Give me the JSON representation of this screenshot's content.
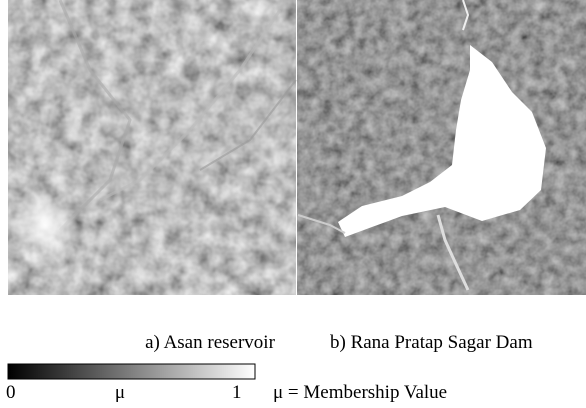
{
  "panels": [
    {
      "caption": "a) Asan reservoir"
    },
    {
      "caption": "b) Rana Pratap Sagar Dam"
    }
  ],
  "colorbar": {
    "min": "0",
    "symbol": "μ",
    "max": "1",
    "legend": "μ = Membership Value"
  }
}
